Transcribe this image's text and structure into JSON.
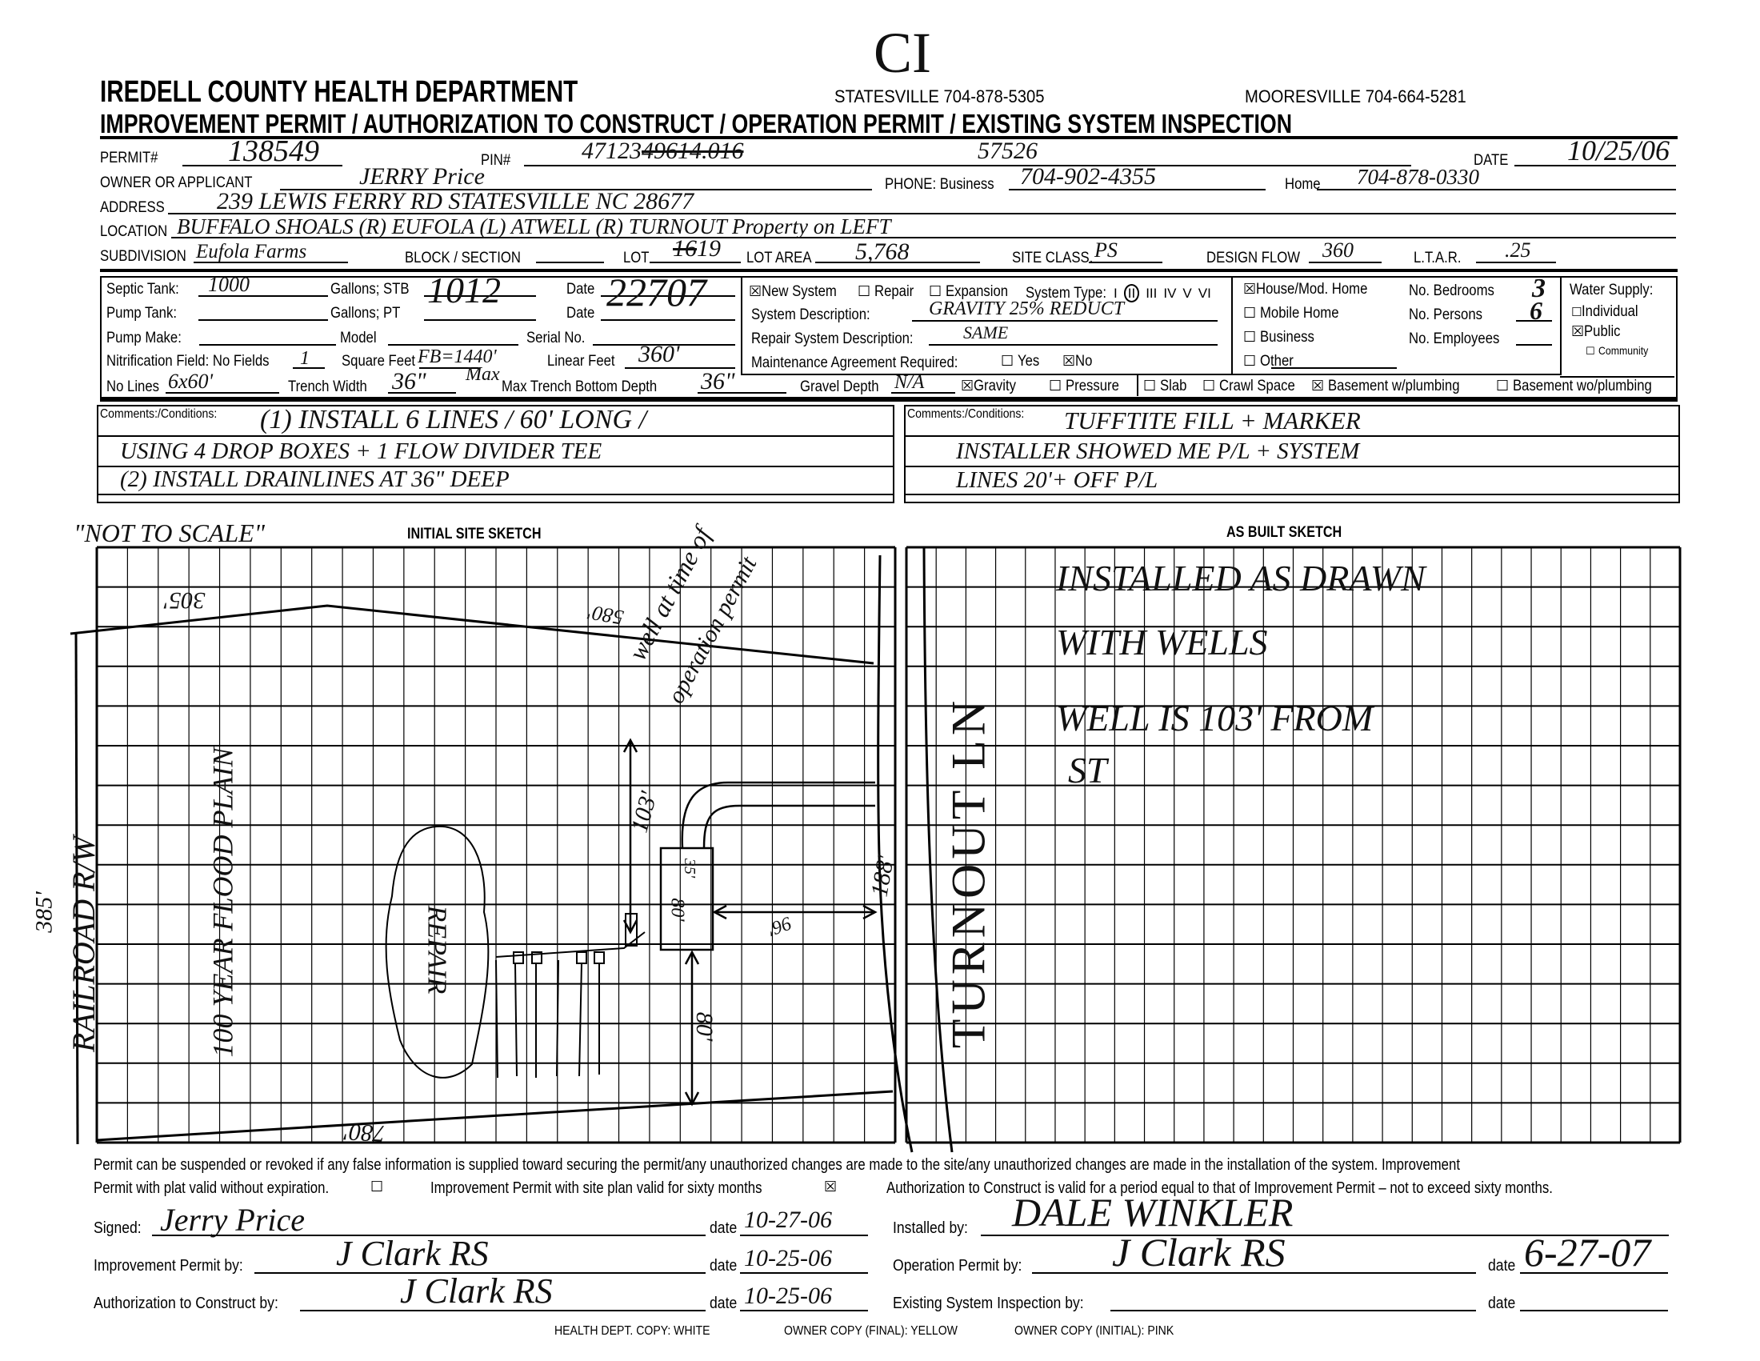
{
  "header": {
    "mark": "CI",
    "department": "IREDELL COUNTY HEALTH DEPARTMENT",
    "statesville": "STATESVILLE 704-878-5305",
    "mooresville": "MOORESVILLE 704-664-5281",
    "title": "IMPROVEMENT PERMIT / AUTHORIZATION TO CONSTRUCT / OPERATION PERMIT / EXISTING SYSTEM INSPECTION"
  },
  "fields": {
    "permit": {
      "label": "PERMIT#",
      "value": "138549"
    },
    "pin": {
      "label": "PIN#",
      "value_prefix": "47123",
      "value_struck": "49614.016",
      "value": "57526"
    },
    "date": {
      "label": "DATE",
      "value": "10/25/06"
    },
    "owner": {
      "label": "OWNER OR APPLICANT",
      "value": "JERRY Price"
    },
    "phone_business": {
      "label": "PHONE: Business",
      "value": "704-902-4355"
    },
    "phone_home": {
      "label": "Home",
      "value": "704-878-0330"
    },
    "address": {
      "label": "ADDRESS",
      "value": "239 LEWIS FERRY RD  STATESVILLE NC 28677"
    },
    "location": {
      "label": "LOCATION",
      "value": "BUFFALO SHOALS (R) EUFOLA (L) ATWELL (R) TURNOUT  Property on LEFT"
    },
    "subdivision": {
      "label": "SUBDIVISION",
      "value": "Eufola Farms"
    },
    "block_section": {
      "label": "BLOCK / SECTION",
      "value": ""
    },
    "lot": {
      "label": "LOT",
      "value_struck": "16",
      "value": "19"
    },
    "lot_area": {
      "label": "LOT AREA",
      "value": "5,768"
    },
    "site_class": {
      "label": "SITE CLASS.",
      "value": "PS"
    },
    "design_flow": {
      "label": "DESIGN FLOW",
      "value": "360"
    },
    "ltar": {
      "label": "L.T.A.R.",
      "value": ".25"
    }
  },
  "tank": {
    "septic_label": "Septic Tank:",
    "septic_value": "1000",
    "gallons_stb": "Gallons;  STB",
    "stb_value": "1012",
    "date_label": "Date",
    "date_value": "22707",
    "pump_tank_label": "Pump Tank:",
    "gallons_pt": "Gallons;  PT",
    "pump_make_label": "Pump Make:",
    "model_label": "Model",
    "serial_label": "Serial No.",
    "nitrification_label": "Nitrification Field: No Fields",
    "no_fields": "1",
    "square_feet_label": "Square Feet",
    "square_feet": "FB=1440'",
    "linear_feet_label": "Linear Feet",
    "linear_feet": "360'",
    "no_lines_label": "No Lines",
    "no_lines": "6x60'",
    "trench_width_label": "Trench Width",
    "trench_width": "36\"",
    "max_overwrite": "Max",
    "trench_depth_label": "Max Trench Bottom Depth",
    "trench_depth": "36\"",
    "gravel_label": "Gravel Depth",
    "gravel_depth": "N/A",
    "gravity_label": "Gravity",
    "gravity_checked": true,
    "pressure_label": "Pressure",
    "pressure_checked": false
  },
  "system": {
    "new_label": "New System",
    "new_checked": true,
    "repair_label": "Repair",
    "repair_checked": false,
    "expansion_label": "Expansion",
    "expansion_checked": false,
    "type_label": "System Type:",
    "types": [
      "I",
      "II",
      "III",
      "IV",
      "V",
      "VI"
    ],
    "selected_type": "II",
    "description_label": "System Description:",
    "description": "GRAVITY 25% REDUCT",
    "repair_description_label": "Repair System Description:",
    "repair_description": "SAME",
    "maintenance_label": "Maintenance Agreement Required:",
    "yes_label": "Yes",
    "yes_checked": false,
    "no_label": "No",
    "no_checked": true
  },
  "building": {
    "house_label": "House/Mod. Home",
    "house_checked": true,
    "mobile_label": "Mobile Home",
    "mobile_checked": false,
    "business_label": "Business",
    "business_checked": false,
    "other_label": "Other",
    "other_checked": false,
    "bedrooms_label": "No. Bedrooms",
    "bedrooms": "3",
    "persons_label": "No. Persons",
    "persons": "6",
    "employees_label": "No. Employees",
    "employees": ""
  },
  "water": {
    "label": "Water Supply:",
    "individual_label": "Individual",
    "individual_checked": false,
    "public_label": "Public",
    "public_checked": true,
    "community_label": "Community",
    "community_checked": false
  },
  "foundation": {
    "slab_label": "Slab",
    "slab_checked": false,
    "crawl_label": "Crawl Space",
    "crawl_checked": false,
    "basement_w_label": "Basement w/plumbing",
    "basement_w_checked": true,
    "basement_wo_label": "Basement wo/plumbing",
    "basement_wo_checked": false
  },
  "comments_left": {
    "label": "Comments:/Conditions:",
    "lines": [
      "(1) INSTALL 6 LINES / 60' LONG /",
      "USING 4 DROP BOXES + 1 FLOW DIVIDER TEE",
      "(2) INSTALL DRAINLINES AT 36\" DEEP"
    ]
  },
  "comments_right": {
    "label": "Comments:/Conditions:",
    "lines": [
      "TUFFTITE FILL + MARKER",
      "INSTALLER SHOWED ME P/L + SYSTEM",
      "LINES 20'+ OFF P/L"
    ]
  },
  "initial_sketch": {
    "note": "\"NOT TO SCALE\"",
    "title": "INITIAL SITE SKETCH",
    "labels": {
      "top_left": "305'",
      "top_right": "580'",
      "bottom": "780'",
      "left": "385'",
      "right": "188'",
      "railroad": "RAILROAD R/W",
      "flood": "100 YEAR FLOOD PLAIN",
      "repair": "REPAIR",
      "well_note_1": "well at time of",
      "well_note_2": "operation permit",
      "well_distance": "103'",
      "tank_width": "35'",
      "tank_length": "80'",
      "road_distance": "96'",
      "south_distance": "80'",
      "road": "TURNOUT LN"
    }
  },
  "as_built_sketch": {
    "title": "AS BUILT SKETCH",
    "lines": [
      "INSTALLED AS DRAWN",
      "WITH WELLS",
      "WELL IS 103' FROM",
      "ST"
    ]
  },
  "footer": {
    "disclaimer": "Permit can be suspended or revoked if any false information is supplied toward securing the permit/any unauthorized changes are made to the site/any unauthorized changes are made in the installation of the system. Improvement",
    "plat_label": "Permit with plat valid without expiration.",
    "plat_checked": false,
    "site_plan_label": "Improvement Permit with site plan valid for sixty months",
    "site_plan_checked": true,
    "authorization_note": "Authorization to Construct is valid for a period equal to that of Improvement Permit – not to exceed sixty months.",
    "signed_label": "Signed:",
    "signed_value": "Jerry Price",
    "signed_date": "10-27-06",
    "improvement_label": "Improvement Permit by:",
    "improvement_value": "J Clark RS",
    "improvement_date": "10-25-06",
    "authorization_label": "Authorization to Construct by:",
    "authorization_value": "J Clark RS",
    "authorization_date": "10-25-06",
    "installed_label": "Installed by:",
    "installed_value": "DALE WINKLER",
    "operation_label": "Operation Permit by:",
    "operation_value": "J Clark RS",
    "operation_date": "6-27-07",
    "existing_label": "Existing System Inspection by:",
    "existing_date": "",
    "date_label": "date",
    "copy_white": "HEALTH DEPT. COPY: WHITE",
    "copy_yellow": "OWNER COPY (FINAL): YELLOW",
    "copy_pink": "OWNER COPY (INITIAL): PINK"
  }
}
